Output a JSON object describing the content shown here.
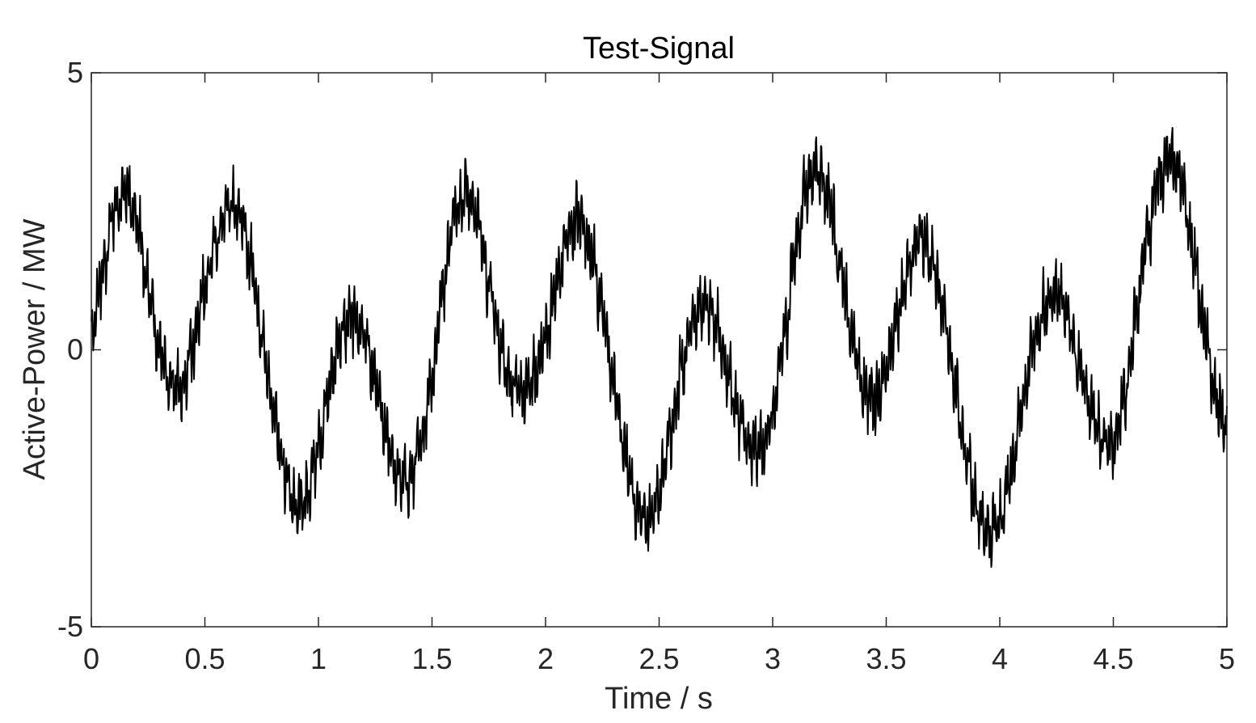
{
  "chart_data": {
    "type": "line",
    "title": "Test-Signal",
    "xlabel": "Time / s",
    "ylabel": "Active-Power / MW",
    "xlim": [
      0,
      5
    ],
    "ylim": [
      -5,
      5
    ],
    "xticks": [
      0,
      0.5,
      1,
      1.5,
      2,
      2.5,
      3,
      3.5,
      4,
      4.5,
      5
    ],
    "xtick_labels": [
      "0",
      "0.5",
      "1",
      "1.5",
      "2",
      "2.5",
      "3",
      "3.5",
      "4",
      "4.5",
      "5"
    ],
    "yticks": [
      -5,
      0,
      5
    ],
    "ytick_labels": [
      "-5",
      "0",
      "5"
    ],
    "grid": false,
    "line_color": "#000000",
    "series": [
      {
        "x": [
          0,
          0.05,
          0.1,
          0.15,
          0.2,
          0.25,
          0.3,
          0.35,
          0.4,
          0.45,
          0.5,
          0.55,
          0.6,
          0.65,
          0.7,
          0.75,
          0.8,
          0.85,
          0.9,
          0.95,
          1,
          1.05,
          1.1,
          1.15,
          1.2,
          1.25,
          1.3,
          1.35,
          1.4,
          1.45,
          1.5,
          1.55,
          1.6,
          1.65,
          1.7,
          1.75,
          1.8,
          1.85,
          1.9,
          1.95,
          2,
          2.05,
          2.1,
          2.15,
          2.2,
          2.25,
          2.3,
          2.35,
          2.4,
          2.45,
          2.5,
          2.55,
          2.6,
          2.65,
          2.7,
          2.75,
          2.8,
          2.85,
          2.9,
          2.95,
          3,
          3.05,
          3.1,
          3.15,
          3.2,
          3.25,
          3.3,
          3.35,
          3.4,
          3.45,
          3.5,
          3.55,
          3.6,
          3.65,
          3.7,
          3.75,
          3.8,
          3.85,
          3.9,
          3.95,
          4,
          4.05,
          4.1,
          4.15,
          4.2,
          4.25,
          4.3,
          4.35,
          4.4,
          4.45,
          4.5,
          4.55,
          4.6,
          4.65,
          4.7,
          4.75,
          4.8,
          4.85,
          4.9,
          4.95,
          5
        ],
        "y": [
          0.2,
          1.4,
          2.5,
          2.9,
          2.3,
          1.1,
          0.0,
          -0.6,
          -0.7,
          0.1,
          1.1,
          2.0,
          2.6,
          2.5,
          1.6,
          0.3,
          -1.0,
          -2.2,
          -2.9,
          -2.6,
          -1.8,
          -0.6,
          0.3,
          0.6,
          0.3,
          -0.6,
          -1.6,
          -2.3,
          -2.4,
          -1.7,
          -0.5,
          1.2,
          2.5,
          2.9,
          2.4,
          1.2,
          0.1,
          -0.6,
          -0.8,
          -0.5,
          0.2,
          1.2,
          2.1,
          2.4,
          1.8,
          0.7,
          -0.6,
          -1.9,
          -2.8,
          -3.1,
          -2.6,
          -1.5,
          -0.3,
          0.6,
          0.8,
          0.5,
          -0.4,
          -1.2,
          -1.8,
          -1.8,
          -1.2,
          0.2,
          1.8,
          3.0,
          3.3,
          2.7,
          1.4,
          0.2,
          -0.7,
          -0.9,
          -0.4,
          0.6,
          1.5,
          2.1,
          1.7,
          0.7,
          -0.6,
          -1.9,
          -2.9,
          -3.3,
          -3.1,
          -2.2,
          -1.0,
          0.2,
          0.8,
          1.0,
          0.6,
          -0.3,
          -1.1,
          -1.6,
          -1.7,
          -0.9,
          0.6,
          2.1,
          3.1,
          3.5,
          3.0,
          1.8,
          0.4,
          -0.9,
          -1.4
        ]
      }
    ]
  }
}
